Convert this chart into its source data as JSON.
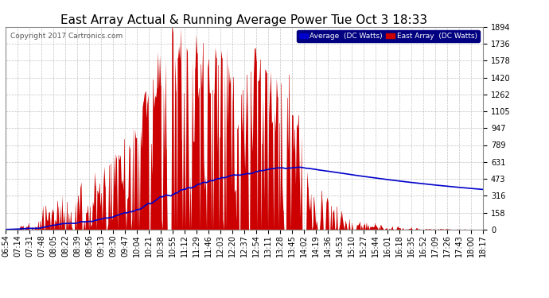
{
  "title": "East Array Actual & Running Average Power Tue Oct 3 18:33",
  "copyright": "Copyright 2017 Cartronics.com",
  "legend_avg": "Average  (DC Watts)",
  "legend_east": "East Array  (DC Watts)",
  "ylabel_values": [
    0.0,
    157.8,
    315.6,
    473.4,
    631.2,
    789.0,
    946.8,
    1104.6,
    1262.4,
    1420.2,
    1578.0,
    1735.8,
    1893.6
  ],
  "ymax": 1893.6,
  "ymin": 0.0,
  "bg_color": "#ffffff",
  "plot_bg_color": "#ffffff",
  "grid_color": "#aaaaaa",
  "bar_color": "#cc0000",
  "avg_color": "#0000cc",
  "title_fontsize": 11,
  "tick_fontsize": 7,
  "time_labels": [
    "06:54",
    "07:14",
    "07:31",
    "07:48",
    "08:05",
    "08:22",
    "08:39",
    "08:56",
    "09:13",
    "09:30",
    "09:47",
    "10:04",
    "10:21",
    "10:38",
    "10:55",
    "11:12",
    "11:29",
    "11:46",
    "12:03",
    "12:20",
    "12:37",
    "12:54",
    "13:11",
    "13:28",
    "13:45",
    "14:02",
    "14:19",
    "14:36",
    "14:53",
    "15:10",
    "15:27",
    "15:44",
    "16:01",
    "16:18",
    "16:35",
    "16:52",
    "17:09",
    "17:26",
    "17:43",
    "18:00",
    "18:17"
  ]
}
